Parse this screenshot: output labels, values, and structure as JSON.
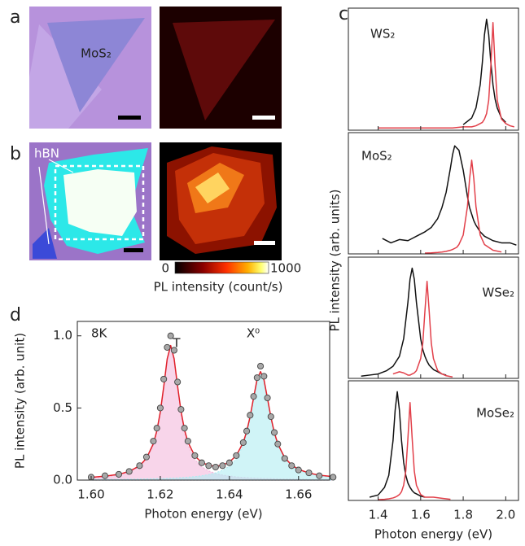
{
  "panel_labels": [
    "a",
    "b",
    "c",
    "d"
  ],
  "panel_a": {
    "sample_label": "MoS₂"
  },
  "panel_b": {
    "hbn_label": "hBN",
    "colorbar": {
      "ticks": [
        0,
        1000
      ],
      "label": "PL intensity (count/s)"
    }
  },
  "panel_c": {
    "y_label": "PL intensity (arb. units)"
  },
  "chart_data": [
    {
      "type": "line",
      "label": "WS₂",
      "xlim": [
        1.26,
        2.06
      ],
      "ylim": [
        0,
        1.1
      ],
      "xticks": [
        1.4,
        1.6,
        1.8,
        {
          "value": 2.0,
          "label": "2.0"
        }
      ],
      "tick_labels": false,
      "x": [
        1.4,
        1.5,
        1.6,
        1.7,
        1.75,
        1.8,
        1.84,
        1.86,
        1.88,
        1.89,
        1.9,
        1.91,
        1.92,
        1.93,
        1.94,
        1.95,
        1.96,
        1.98,
        2.0,
        2.02,
        2.04
      ],
      "series": [
        {
          "color": "#111111",
          "values": [
            null,
            null,
            null,
            null,
            null,
            0.05,
            0.11,
            0.2,
            0.41,
            0.61,
            0.86,
            1.0,
            0.86,
            0.61,
            0.41,
            0.28,
            0.2,
            0.11,
            0.07,
            null,
            null
          ]
        },
        {
          "color": "#e2404a",
          "values": [
            0.02,
            0.02,
            0.02,
            0.02,
            0.02,
            0.03,
            0.03,
            0.04,
            0.06,
            0.07,
            0.1,
            0.15,
            0.27,
            0.58,
            0.97,
            0.58,
            0.27,
            0.1,
            0.06,
            0.04,
            0.03
          ]
        }
      ]
    },
    {
      "type": "line",
      "label": "MoS₂",
      "xlim": [
        1.26,
        2.06
      ],
      "ylim": [
        0,
        1.1
      ],
      "xticks": [
        1.4,
        1.6,
        1.8,
        {
          "value": 2.0,
          "label": "2.0"
        }
      ],
      "tick_labels": false,
      "x": [
        1.42,
        1.46,
        1.5,
        1.54,
        1.58,
        1.62,
        1.65,
        1.68,
        1.7,
        1.72,
        1.74,
        1.75,
        1.76,
        1.77,
        1.78,
        1.8,
        1.82,
        1.83,
        1.84,
        1.85,
        1.86,
        1.88,
        1.9,
        1.94,
        1.98,
        2.02,
        2.05
      ],
      "series": [
        {
          "color": "#111111",
          "values": [
            0.14,
            0.1,
            0.13,
            0.12,
            0.16,
            0.2,
            0.24,
            0.32,
            0.42,
            0.56,
            0.78,
            0.9,
            0.98,
            0.96,
            0.94,
            0.76,
            0.52,
            0.42,
            0.36,
            0.3,
            0.26,
            0.2,
            0.16,
            0.12,
            0.1,
            0.1,
            0.08
          ]
        },
        {
          "color": "#e2404a",
          "values": [
            null,
            null,
            null,
            null,
            null,
            0.007,
            0.009,
            0.013,
            0.017,
            0.023,
            0.033,
            0.04,
            0.05,
            0.06,
            0.085,
            0.17,
            0.43,
            0.68,
            0.85,
            0.68,
            0.43,
            0.17,
            0.085,
            0.033,
            0.017,
            null,
            null
          ]
        }
      ]
    },
    {
      "type": "line",
      "label": "WSe₂",
      "xlim": [
        1.26,
        2.06
      ],
      "ylim": [
        0,
        1.1
      ],
      "xticks": [
        1.4,
        1.6,
        1.8,
        {
          "value": 2.0,
          "label": "2.0"
        }
      ],
      "tick_labels": false,
      "x": [
        1.32,
        1.36,
        1.4,
        1.44,
        1.47,
        1.5,
        1.52,
        1.54,
        1.55,
        1.56,
        1.57,
        1.58,
        1.6,
        1.61,
        1.62,
        1.63,
        1.64,
        1.65,
        1.66,
        1.68,
        1.7,
        1.72,
        1.75
      ],
      "series": [
        {
          "color": "#111111",
          "values": [
            0.02,
            0.03,
            0.04,
            0.07,
            0.11,
            0.2,
            0.36,
            0.69,
            0.9,
            1.0,
            0.9,
            0.69,
            0.36,
            0.26,
            0.2,
            0.155,
            0.12,
            0.1,
            0.08,
            0.06,
            0.04,
            0.03,
            null
          ]
        },
        {
          "color": "#e2404a",
          "values": [
            null,
            null,
            null,
            null,
            0.04,
            0.06,
            0.05,
            0.03,
            0.03,
            0.04,
            0.05,
            0.07,
            0.18,
            0.32,
            0.61,
            0.88,
            0.61,
            0.32,
            0.18,
            0.07,
            0.04,
            0.024,
            0.013
          ]
        }
      ]
    },
    {
      "type": "line",
      "label": "MoSe₂",
      "xlim": [
        1.26,
        2.06
      ],
      "ylim": [
        0,
        1.1
      ],
      "xticks": [
        1.4,
        1.6,
        1.8,
        {
          "value": 2.0,
          "label": "2.0"
        }
      ],
      "x_label": "Photon energy (eV)",
      "x": [
        1.36,
        1.4,
        1.43,
        1.45,
        1.47,
        1.48,
        1.49,
        1.5,
        1.51,
        1.52,
        1.53,
        1.54,
        1.55,
        1.56,
        1.57,
        1.58,
        1.6,
        1.62,
        1.66,
        1.7,
        1.74
      ],
      "series": [
        {
          "color": "#111111",
          "values": [
            0.03,
            0.05,
            0.12,
            0.23,
            0.55,
            0.83,
            1.0,
            0.83,
            0.55,
            0.35,
            0.23,
            0.16,
            0.12,
            0.09,
            0.07,
            0.06,
            0.04,
            0.03,
            null,
            null,
            null
          ]
        },
        {
          "color": "#e2404a",
          "values": [
            null,
            0.007,
            0.01,
            0.015,
            0.023,
            0.03,
            0.04,
            0.054,
            0.08,
            0.14,
            0.27,
            0.57,
            0.9,
            0.57,
            0.27,
            0.14,
            0.054,
            0.03,
            0.03,
            0.02,
            0.01
          ]
        }
      ]
    },
    {
      "type": "line",
      "x_label": "Photon energy (eV)",
      "y_label": "PL intensity (arb. unit)",
      "annotations": [
        "8K",
        "T",
        "X⁰"
      ],
      "xlim": [
        1.596,
        1.669
      ],
      "ylim": [
        0,
        1.1
      ],
      "xticks": [
        {
          "value": 1.6,
          "label": "1.60"
        },
        {
          "value": 1.62,
          "label": "1.62"
        },
        {
          "value": 1.64,
          "label": "1.64"
        },
        {
          "value": 1.66,
          "label": "1.66"
        }
      ],
      "yticks": [
        {
          "value": 0,
          "label": "0.0"
        },
        {
          "value": 0.5,
          "label": "0.5"
        },
        {
          "value": 1.0,
          "label": "1.0"
        }
      ],
      "x": [
        1.6,
        1.604,
        1.608,
        1.611,
        1.614,
        1.616,
        1.618,
        1.619,
        1.62,
        1.621,
        1.622,
        1.623,
        1.624,
        1.625,
        1.626,
        1.627,
        1.628,
        1.63,
        1.632,
        1.634,
        1.636,
        1.638,
        1.64,
        1.642,
        1.644,
        1.645,
        1.646,
        1.647,
        1.648,
        1.649,
        1.65,
        1.651,
        1.652,
        1.653,
        1.654,
        1.656,
        1.658,
        1.66,
        1.663,
        1.666,
        1.67
      ],
      "series": [
        {
          "style": "area",
          "color": "#f3b9dc",
          "values": [
            0.015,
            0.022,
            0.035,
            0.054,
            0.092,
            0.143,
            0.243,
            0.331,
            0.46,
            0.637,
            0.828,
            0.92,
            0.828,
            0.637,
            0.46,
            0.331,
            0.243,
            0.143,
            0.092,
            0.064,
            0.046,
            0.035,
            0.028,
            0.022,
            0.018,
            0.017,
            0.015,
            0.014,
            0.013,
            0.012,
            0.011,
            0.01,
            0.01,
            0.009,
            0.008,
            0.007,
            0.007,
            0.006,
            0.005,
            0.004,
            0.004
          ]
        },
        {
          "style": "area",
          "color": "#b0ecf2",
          "values": [
            0.004,
            0.005,
            0.005,
            0.006,
            0.007,
            0.008,
            0.009,
            0.01,
            0.011,
            0.011,
            0.012,
            0.013,
            0.014,
            0.015,
            0.017,
            0.018,
            0.02,
            0.024,
            0.03,
            0.038,
            0.05,
            0.068,
            0.097,
            0.148,
            0.243,
            0.32,
            0.427,
            0.558,
            0.684,
            0.74,
            0.684,
            0.558,
            0.427,
            0.32,
            0.243,
            0.148,
            0.097,
            0.068,
            0.044,
            0.03,
            0.02
          ]
        },
        {
          "style": "line",
          "color": "#e0202a",
          "values": [
            0.019,
            0.027,
            0.04,
            0.06,
            0.099,
            0.151,
            0.252,
            0.341,
            0.471,
            0.648,
            0.84,
            0.933,
            0.842,
            0.652,
            0.477,
            0.349,
            0.263,
            0.167,
            0.122,
            0.102,
            0.096,
            0.103,
            0.125,
            0.17,
            0.261,
            0.337,
            0.442,
            0.572,
            0.697,
            0.752,
            0.695,
            0.568,
            0.437,
            0.329,
            0.251,
            0.155,
            0.104,
            0.074,
            0.049,
            0.034,
            0.024
          ]
        },
        {
          "style": "markers",
          "color": "#a8a8a8",
          "values": [
            0.02,
            0.03,
            0.04,
            0.06,
            0.1,
            0.16,
            0.27,
            0.36,
            0.5,
            0.7,
            0.92,
            1.0,
            0.9,
            0.68,
            0.49,
            0.36,
            0.27,
            0.17,
            0.12,
            0.1,
            0.09,
            0.1,
            0.12,
            0.17,
            0.26,
            0.34,
            0.45,
            0.58,
            0.71,
            0.79,
            0.72,
            0.57,
            0.44,
            0.33,
            0.25,
            0.15,
            0.1,
            0.07,
            0.05,
            0.03,
            0.02
          ]
        }
      ]
    }
  ]
}
